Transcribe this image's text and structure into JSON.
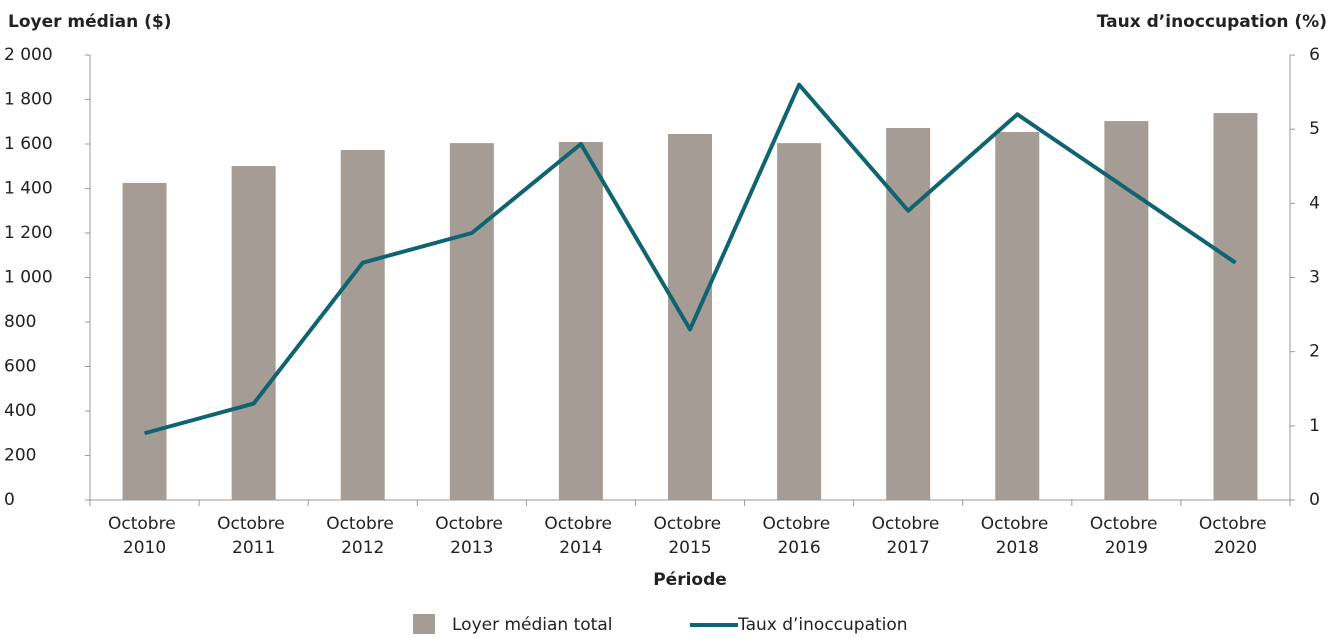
{
  "chart_data": {
    "type": "bar+line",
    "y_title": "Loyer médian ($)",
    "y2_title": "Taux d’inoccupation (%)",
    "x_title": "Période",
    "categories": [
      "Octobre 2010",
      "Octobre 2011",
      "Octobre 2012",
      "Octobre 2013",
      "Octobre 2014",
      "Octobre 2015",
      "Octobre 2016",
      "Octobre 2017",
      "Octobre 2018",
      "Octobre 2019",
      "Octobre 2020"
    ],
    "series": [
      {
        "name": "Loyer médian total",
        "type": "bar",
        "color": "#a59d95",
        "values": [
          1425,
          1501,
          1573,
          1604,
          1609,
          1645,
          1604,
          1672,
          1654,
          1703,
          1739
        ]
      },
      {
        "name": "Taux d’inoccupation",
        "type": "line",
        "axis": "y2",
        "color": "#0f6470",
        "values": [
          0.9,
          1.3,
          3.2,
          3.6,
          4.8,
          2.3,
          5.6,
          3.9,
          5.2,
          4.2,
          3.2
        ]
      }
    ],
    "ylim": [
      0,
      2000
    ],
    "yticks": [
      0,
      200,
      400,
      600,
      800,
      {
        "value": 1000,
        "label": "1 000"
      },
      {
        "value": 1200,
        "label": "1 200"
      },
      {
        "value": 1400,
        "label": "1 400"
      },
      {
        "value": 1600,
        "label": "1 600"
      },
      {
        "value": 1800,
        "label": "1 800"
      },
      {
        "value": 2000,
        "label": "2 000"
      }
    ],
    "y2lim": [
      0,
      6
    ],
    "y2ticks": [
      0,
      1,
      2,
      3,
      4,
      5,
      6
    ],
    "legend": "bottom"
  }
}
